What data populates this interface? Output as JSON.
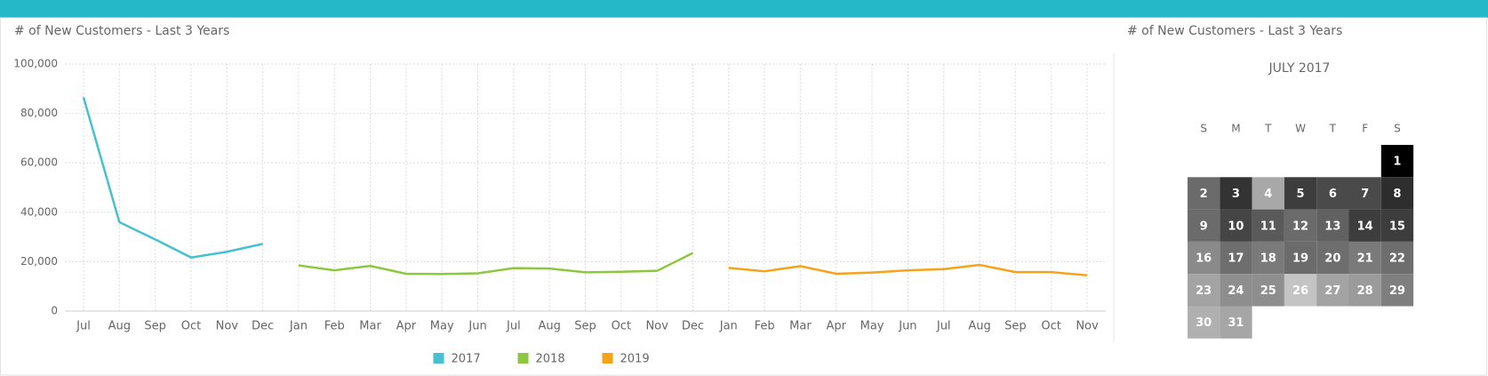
{
  "chart_data": [
    {
      "type": "line",
      "title": "# of New Customers - Last 3 Years",
      "categories": [
        "Jul",
        "Aug",
        "Sep",
        "Oct",
        "Nov",
        "Dec",
        "Jan",
        "Feb",
        "Mar",
        "Apr",
        "May",
        "Jun",
        "Jul",
        "Aug",
        "Sep",
        "Oct",
        "Nov",
        "Dec",
        "Jan",
        "Feb",
        "Mar",
        "Apr",
        "May",
        "Jun",
        "Jul",
        "Aug",
        "Sep",
        "Oct",
        "Nov"
      ],
      "series": [
        {
          "name": "2017",
          "color": "#45c1cf",
          "values": [
            86500,
            36000,
            29000,
            21700,
            24000,
            27200,
            null,
            null,
            null,
            null,
            null,
            null,
            null,
            null,
            null,
            null,
            null,
            null,
            null,
            null,
            null,
            null,
            null,
            null,
            null,
            null,
            null,
            null,
            null
          ]
        },
        {
          "name": "2018",
          "color": "#8dc63f",
          "values": [
            null,
            null,
            null,
            null,
            null,
            null,
            18500,
            16500,
            18300,
            15100,
            15000,
            15300,
            17400,
            17200,
            15700,
            15900,
            16300,
            23500,
            null,
            null,
            null,
            null,
            null,
            null,
            null,
            null,
            null,
            null,
            null
          ]
        },
        {
          "name": "2019",
          "color": "#f7a21b",
          "values": [
            null,
            null,
            null,
            null,
            null,
            null,
            null,
            null,
            null,
            null,
            null,
            null,
            null,
            null,
            null,
            null,
            null,
            null,
            17500,
            16100,
            18200,
            15100,
            15600,
            16500,
            17000,
            18700,
            15800,
            15800,
            14500
          ]
        }
      ],
      "ylim": [
        0,
        100000
      ],
      "yticks": [
        0,
        {
          "value": 20000,
          "label": "20,000"
        },
        {
          "value": 40000,
          "label": "40,000"
        },
        {
          "value": 60000,
          "label": "60,000"
        },
        {
          "value": 80000,
          "label": "80,000"
        },
        {
          "value": 100000,
          "label": "100,000"
        }
      ],
      "grid": true,
      "legend": "bottom"
    },
    {
      "type": "calendar",
      "title": "# of New Customers - Last 3 Years",
      "month": "JULY 2017",
      "weekdays": [
        "S",
        "M",
        "T",
        "W",
        "T",
        "F",
        "S"
      ],
      "days": [
        1,
        2,
        3,
        4,
        5,
        6,
        7,
        8,
        9,
        10,
        11,
        12,
        13,
        14,
        15,
        16,
        17,
        18,
        19,
        20,
        21,
        22,
        23,
        24,
        25,
        26,
        27,
        28,
        29,
        30,
        31
      ],
      "colors": [
        "#000000",
        "#6b6b6b",
        "#333333",
        "#a8a8a8",
        "#3d3d3d",
        "#4a4a4a",
        "#4a4a4a",
        "#2e2e2e",
        "#6b6b6b",
        "#454545",
        "#5a5a5a",
        "#6b6b6b",
        "#616161",
        "#3d3d3d",
        "#3d3d3d",
        "#8a8a8a",
        "#6e6e6e",
        "#7a7a7a",
        "#6b6b6b",
        "#6e6e6e",
        "#7a7a7a",
        "#6e6e6e",
        "#a3a3a3",
        "#8e8e8e",
        "#8e8e8e",
        "#c4c4c4",
        "#a3a3a3",
        "#9b9b9b",
        "#7f7f7f",
        "#b0b0b0",
        "#a6a6a6"
      ]
    }
  ]
}
